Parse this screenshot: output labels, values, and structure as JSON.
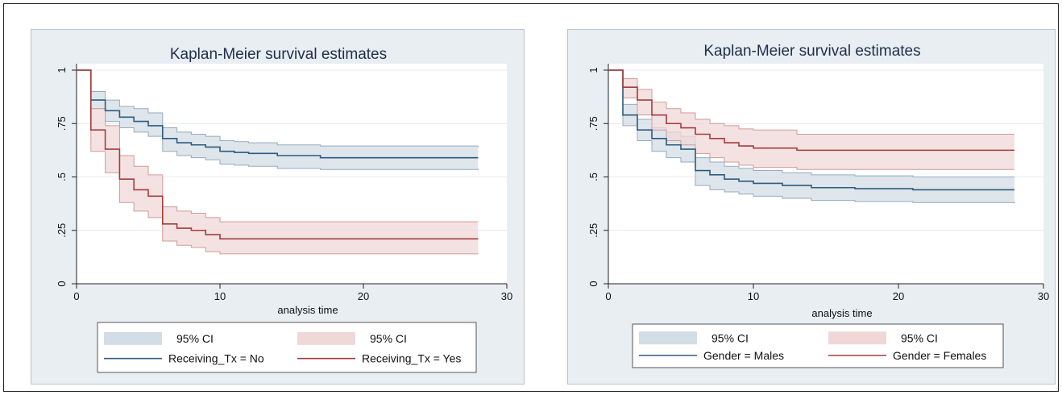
{
  "colors": {
    "panel_bg": "#e9eef3",
    "plot_bg": "#ffffff",
    "grid": "#e6eaef",
    "title": "#1f2f4a",
    "blue_line": "#2d5a7e",
    "blue_band": "#d3dde6",
    "blue_band_edge": "#95aabf",
    "red_line": "#a43c3c",
    "red_band": "#f0d8d8",
    "red_band_edge": "#d09a9a"
  },
  "chart_data": [
    {
      "type": "line",
      "step": true,
      "title": "Kaplan-Meier survival estimates",
      "xlabel": "analysis time",
      "ylabel": "",
      "xlim": [
        0,
        30
      ],
      "ylim": [
        0,
        1
      ],
      "xticks": [
        0,
        10,
        20,
        30
      ],
      "xtick_labels": [
        "0",
        "10",
        "20",
        "30"
      ],
      "yticks": [
        0,
        0.25,
        0.5,
        0.75,
        1
      ],
      "ytick_labels": [
        "0",
        ".25",
        ".5",
        ".75",
        "1"
      ],
      "grid": true,
      "legend_position": "bottom",
      "legend_rows": [
        [
          "95% CI",
          "95% CI"
        ],
        [
          "Receiving_Tx = No",
          "Receiving_Tx = Yes"
        ]
      ],
      "series": [
        {
          "name": "Receiving_Tx = No",
          "color": "blue",
          "x": [
            0,
            1,
            2,
            3,
            4,
            5,
            6,
            7,
            8,
            9,
            10,
            11,
            12,
            14,
            17,
            28
          ],
          "y": [
            1,
            0.86,
            0.81,
            0.78,
            0.76,
            0.74,
            0.68,
            0.66,
            0.65,
            0.64,
            0.62,
            0.615,
            0.61,
            0.6,
            0.59,
            0.59
          ],
          "lower": [
            1,
            0.82,
            0.76,
            0.73,
            0.71,
            0.69,
            0.62,
            0.6,
            0.59,
            0.58,
            0.56,
            0.555,
            0.55,
            0.54,
            0.535,
            0.53
          ],
          "upper": [
            1,
            0.9,
            0.86,
            0.83,
            0.82,
            0.8,
            0.73,
            0.71,
            0.7,
            0.69,
            0.67,
            0.665,
            0.66,
            0.65,
            0.645,
            0.64
          ]
        },
        {
          "name": "Receiving_Tx = Yes",
          "color": "red",
          "x": [
            0,
            1,
            2,
            3,
            4,
            5,
            6,
            7,
            8,
            9,
            10,
            28
          ],
          "y": [
            1,
            0.72,
            0.63,
            0.49,
            0.44,
            0.41,
            0.28,
            0.26,
            0.25,
            0.23,
            0.21,
            0.21
          ],
          "lower": [
            1,
            0.62,
            0.52,
            0.38,
            0.34,
            0.31,
            0.2,
            0.18,
            0.17,
            0.15,
            0.14,
            0.14
          ],
          "upper": [
            1,
            0.82,
            0.74,
            0.6,
            0.55,
            0.51,
            0.36,
            0.34,
            0.33,
            0.31,
            0.29,
            0.29
          ]
        }
      ]
    },
    {
      "type": "line",
      "step": true,
      "title": "Kaplan-Meier survival estimates",
      "xlabel": "analysis time",
      "ylabel": "",
      "xlim": [
        0,
        30
      ],
      "ylim": [
        0,
        1
      ],
      "xticks": [
        0,
        10,
        20,
        30
      ],
      "xtick_labels": [
        "0",
        "10",
        "20",
        "30"
      ],
      "yticks": [
        0,
        0.25,
        0.5,
        0.75,
        1
      ],
      "ytick_labels": [
        "0",
        ".25",
        ".5",
        ".75",
        "1"
      ],
      "grid": true,
      "legend_position": "bottom",
      "legend_rows": [
        [
          "95% CI",
          "95% CI"
        ],
        [
          "Gender = Males",
          "Gender = Females"
        ]
      ],
      "series": [
        {
          "name": "Gender = Males",
          "color": "blue",
          "x": [
            0,
            1,
            2,
            3,
            4,
            5,
            6,
            7,
            8,
            9,
            10,
            12,
            14,
            17,
            21,
            28
          ],
          "y": [
            1,
            0.79,
            0.72,
            0.68,
            0.65,
            0.63,
            0.53,
            0.51,
            0.49,
            0.48,
            0.47,
            0.46,
            0.45,
            0.445,
            0.44,
            0.44
          ],
          "lower": [
            1,
            0.74,
            0.67,
            0.62,
            0.59,
            0.57,
            0.46,
            0.44,
            0.43,
            0.42,
            0.41,
            0.4,
            0.39,
            0.385,
            0.38,
            0.375
          ],
          "upper": [
            1,
            0.84,
            0.77,
            0.73,
            0.71,
            0.69,
            0.59,
            0.57,
            0.55,
            0.54,
            0.53,
            0.52,
            0.51,
            0.505,
            0.5,
            0.5
          ]
        },
        {
          "name": "Gender = Females",
          "color": "red",
          "x": [
            0,
            1,
            2,
            3,
            4,
            5,
            6,
            7,
            8,
            9,
            10,
            13,
            28
          ],
          "y": [
            1,
            0.92,
            0.86,
            0.79,
            0.75,
            0.73,
            0.7,
            0.68,
            0.66,
            0.645,
            0.635,
            0.625,
            0.625
          ],
          "lower": [
            1,
            0.87,
            0.79,
            0.72,
            0.67,
            0.65,
            0.61,
            0.59,
            0.57,
            0.555,
            0.545,
            0.535,
            0.535
          ],
          "upper": [
            1,
            0.96,
            0.91,
            0.85,
            0.82,
            0.8,
            0.77,
            0.75,
            0.74,
            0.725,
            0.72,
            0.7,
            0.7
          ]
        }
      ]
    }
  ]
}
